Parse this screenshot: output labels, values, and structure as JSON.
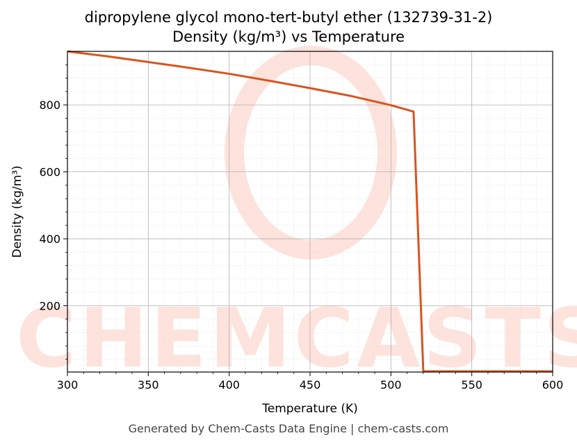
{
  "chart_data": {
    "type": "line",
    "title": "dipropylene glycol mono-tert-butyl ether (132739-31-2)",
    "subtitle": "Density (kg/m³) vs Temperature",
    "xlabel": "Temperature (K)",
    "ylabel": "Density (kg/m³)",
    "xlim": [
      300,
      600
    ],
    "ylim": [
      2,
      960
    ],
    "x_ticks": [
      300,
      350,
      400,
      450,
      500,
      550,
      600
    ],
    "y_ticks": [
      200,
      400,
      600,
      800
    ],
    "grid": true,
    "legend": "none",
    "series": [
      {
        "color": "#d9541e",
        "x": [
          300,
          325,
          350,
          375,
          400,
          425,
          450,
          475,
          500,
          514,
          520,
          550,
          600
        ],
        "y": [
          960,
          945,
          928,
          911,
          893,
          872,
          850,
          827,
          799,
          780,
          4,
          4,
          4
        ]
      }
    ]
  },
  "watermark": {
    "text": "CHEMCASTS",
    "color": "#fde3dc"
  },
  "footer": "Generated by Chem-Casts Data Engine | chem-casts.com"
}
